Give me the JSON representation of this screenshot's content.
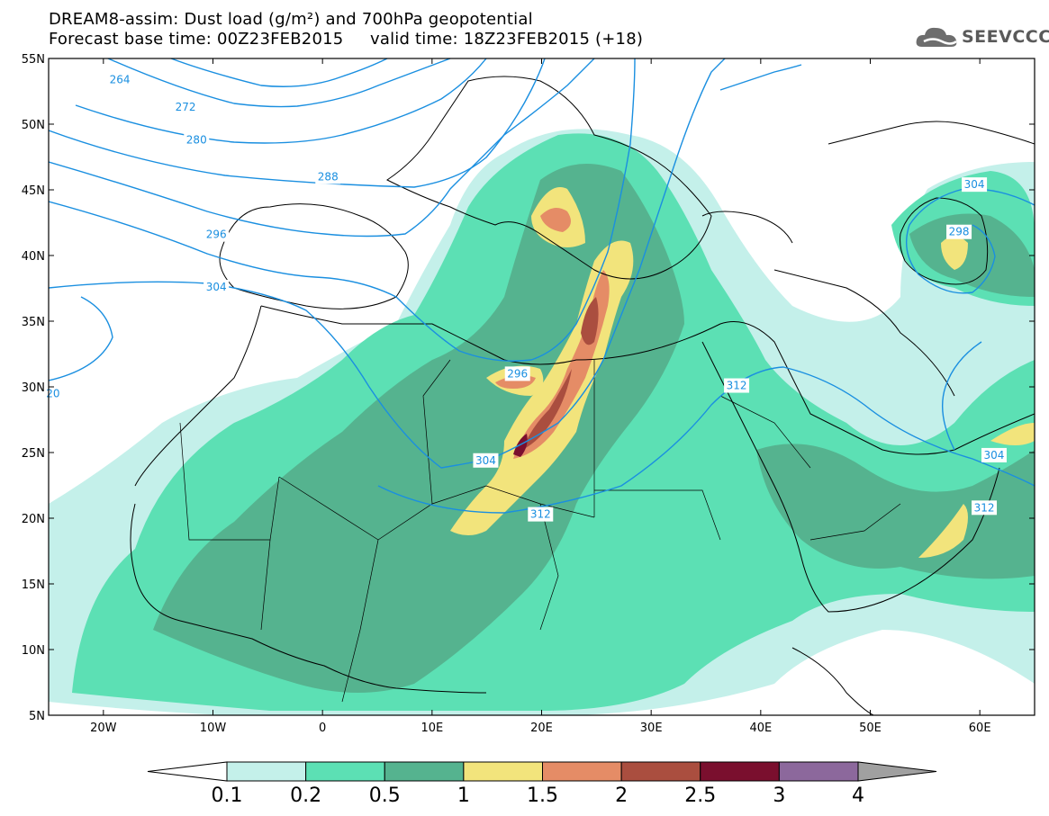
{
  "title_line1": "DREAM8-assim: Dust load (g/m²) and 700hPa geopotential",
  "title_line2": "Forecast base time: 00Z23FEB2015     valid time: 18Z23FEB2015 (+18)",
  "logo": {
    "text": "SEEVCCC",
    "icon": "cloud-icon"
  },
  "map": {
    "lon_range": [
      -25,
      65
    ],
    "lat_range": [
      5,
      55
    ],
    "lat_labels": [
      "55N",
      "50N",
      "45N",
      "40N",
      "35N",
      "30N",
      "25N",
      "20N",
      "15N",
      "10N",
      "5N"
    ],
    "lon_labels": [
      "20W",
      "10W",
      "0",
      "10E",
      "20E",
      "30E",
      "40E",
      "50E",
      "60E"
    ]
  },
  "contour_labels": [
    {
      "text": "264",
      "lon": -18.5,
      "lat": 53.4
    },
    {
      "text": "272",
      "lon": -12.5,
      "lat": 51.3
    },
    {
      "text": "280",
      "lon": -11.5,
      "lat": 48.8
    },
    {
      "text": "288",
      "lon": 0.5,
      "lat": 46.0
    },
    {
      "text": "296",
      "lon": -9.7,
      "lat": 41.6
    },
    {
      "text": "304",
      "lon": -9.7,
      "lat": 37.6
    },
    {
      "text": "20",
      "lon": -24.6,
      "lat": 29.5
    },
    {
      "text": "296",
      "lon": 17.8,
      "lat": 31.0
    },
    {
      "text": "304",
      "lon": 14.9,
      "lat": 24.4
    },
    {
      "text": "312",
      "lon": 19.9,
      "lat": 20.3
    },
    {
      "text": "312",
      "lon": 37.8,
      "lat": 30.1
    },
    {
      "text": "304",
      "lon": 59.5,
      "lat": 45.4
    },
    {
      "text": "298",
      "lon": 58.1,
      "lat": 41.8
    },
    {
      "text": "304",
      "lon": 61.3,
      "lat": 24.8
    },
    {
      "text": "312",
      "lon": 60.4,
      "lat": 20.8
    }
  ],
  "colorbar": {
    "labels": [
      "0.1",
      "0.2",
      "0.5",
      "1",
      "1.5",
      "2",
      "2.5",
      "3",
      "4"
    ],
    "colors": [
      "#c4f0ea",
      "#5ce0b4",
      "#55b38f",
      "#f2e47c",
      "#e58c66",
      "#aa4e3f",
      "#7a0f2e",
      "#8c689c"
    ],
    "under_color": "#ffffff",
    "over_color": "#a0a0a0"
  },
  "colors": {
    "contour": "#1a8fe0",
    "coast": "#000000"
  }
}
